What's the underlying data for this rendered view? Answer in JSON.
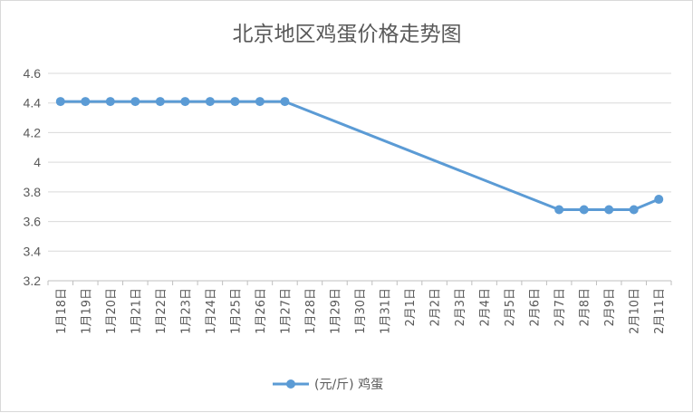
{
  "chart_data": {
    "type": "line",
    "title": "北京地区鸡蛋价格走势图",
    "categories": [
      "1月18日",
      "1月19日",
      "1月20日",
      "1月21日",
      "1月22日",
      "1月23日",
      "1月24日",
      "1月25日",
      "1月26日",
      "1月27日",
      "1月28日",
      "1月29日",
      "1月30日",
      "1月31日",
      "2月1日",
      "2月2日",
      "2月3日",
      "2月4日",
      "2月5日",
      "2月6日",
      "2月7日",
      "2月8日",
      "2月9日",
      "2月10日",
      "2月11日"
    ],
    "series": [
      {
        "name": "(元/斤) 鸡蛋",
        "color": "#5b9bd5",
        "values": [
          4.41,
          4.41,
          4.41,
          4.41,
          4.41,
          4.41,
          4.41,
          4.41,
          4.41,
          4.41,
          null,
          null,
          null,
          null,
          null,
          null,
          null,
          null,
          null,
          null,
          3.68,
          3.68,
          3.68,
          3.68,
          3.75
        ]
      }
    ],
    "ylim": [
      3.2,
      4.6
    ],
    "yticks": [
      "3.2",
      "3.4",
      "3.6",
      "3.8",
      "4",
      "4.2",
      "4.4",
      "4.6"
    ],
    "grid": true,
    "legend": "bottom",
    "xlabel": "",
    "ylabel": ""
  }
}
